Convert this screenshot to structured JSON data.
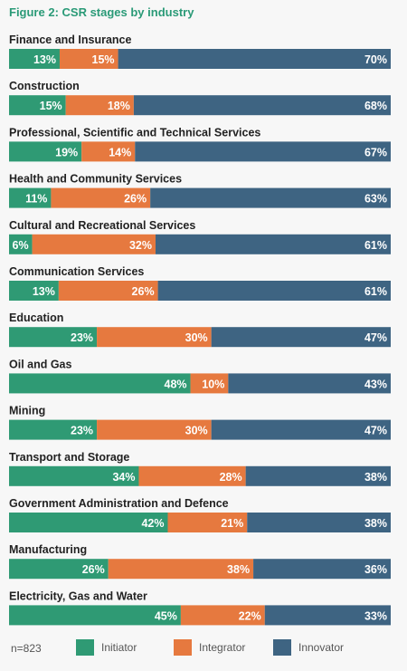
{
  "title": "Figure 2: CSR stages by industry",
  "colors": {
    "Initiator": "#2f9a74",
    "Integrator": "#e6793f",
    "Innovator": "#3e6482"
  },
  "footnote": "n=823",
  "chart_data": {
    "type": "bar",
    "orientation": "horizontal",
    "stacked": true,
    "xlim": [
      0,
      100
    ],
    "legend_position": "bottom",
    "categories": [
      "Finance and Insurance",
      "Construction",
      "Professional, Scientific and Technical Services",
      "Health and Community Services",
      "Cultural and Recreational Services",
      "Communication Services",
      "Education",
      "Oil and Gas",
      "Mining",
      "Transport and Storage",
      "Government Administration and Defence",
      "Manufacturing",
      "Electricity, Gas and Water"
    ],
    "series": [
      {
        "name": "Initiator",
        "values": [
          13,
          15,
          19,
          11,
          6,
          13,
          23,
          48,
          23,
          34,
          42,
          26,
          45
        ]
      },
      {
        "name": "Integrator",
        "values": [
          15,
          18,
          14,
          26,
          32,
          26,
          30,
          10,
          30,
          28,
          21,
          38,
          22
        ]
      },
      {
        "name": "Innovator",
        "values": [
          70,
          68,
          67,
          63,
          61,
          61,
          47,
          43,
          47,
          38,
          38,
          36,
          33
        ]
      }
    ]
  }
}
